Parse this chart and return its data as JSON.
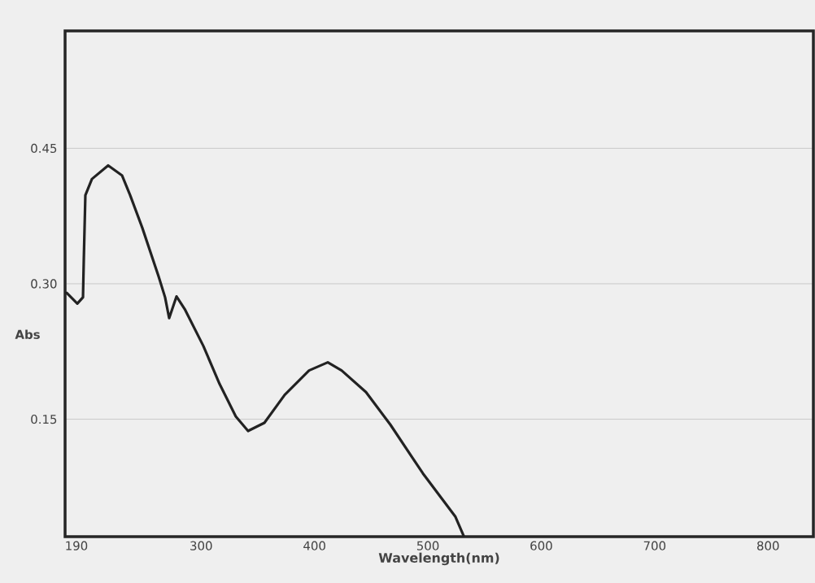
{
  "chart_data": {
    "type": "line",
    "xlabel": "Wavelength(nm)",
    "ylabel": "Abs",
    "x": [
      181.4,
      190.8,
      195.8,
      196.5,
      197.9,
      203.7,
      218.0,
      230.2,
      237.4,
      248.1,
      262.5,
      268.2,
      271.8,
      278.3,
      285.5,
      302.0,
      316.3,
      330.6,
      341.4,
      355.8,
      373.7,
      395.2,
      411.7,
      423.9,
      445.4,
      466.9,
      495.6,
      524.3,
      531.5
    ],
    "series": [
      {
        "color": "#222222",
        "values": [
          0.29,
          0.278,
          0.285,
          0.326,
          0.398,
          0.416,
          0.431,
          0.42,
          0.398,
          0.362,
          0.308,
          0.285,
          0.262,
          0.286,
          0.272,
          0.231,
          0.189,
          0.153,
          0.137,
          0.146,
          0.177,
          0.204,
          0.213,
          0.204,
          0.18,
          0.144,
          0.09,
          0.042,
          0.021
        ]
      }
    ],
    "xlim": [
      180,
      840
    ],
    "ylim": [
      0.02,
      0.58
    ],
    "xticks": [
      190,
      300,
      400,
      500,
      600,
      700,
      800
    ],
    "yticks": [
      0.15,
      {
        "value": 0.3,
        "label": "0.30"
      },
      0.45
    ],
    "grid": "y"
  }
}
